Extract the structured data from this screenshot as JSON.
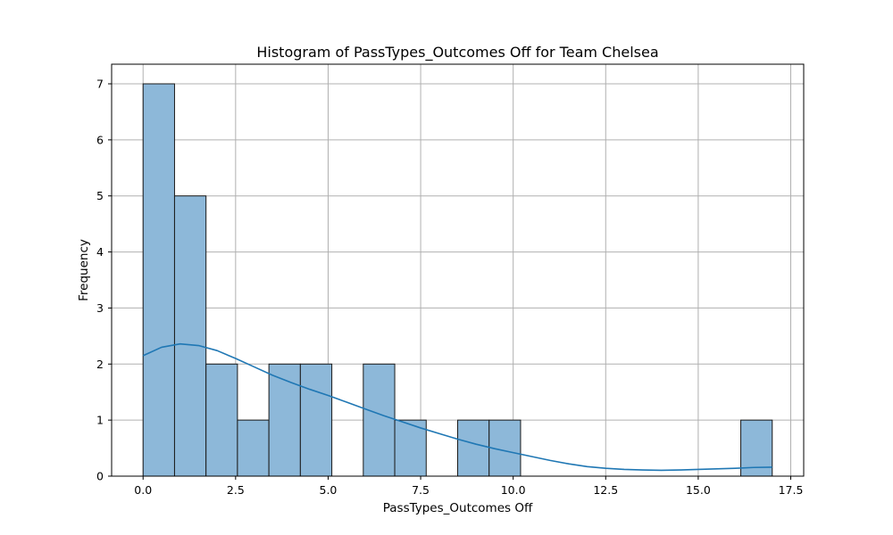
{
  "chart_data": {
    "type": "bar",
    "title": "Histogram of PassTypes_Outcomes Off for Team Chelsea",
    "xlabel": "PassTypes_Outcomes Off",
    "ylabel": "Frequency",
    "xlim": [
      -0.85,
      17.85
    ],
    "ylim": [
      0,
      7.35
    ],
    "x_ticks": [
      0.0,
      2.5,
      5.0,
      7.5,
      10.0,
      12.5,
      15.0,
      17.5
    ],
    "x_tick_labels": [
      "0.0",
      "2.5",
      "5.0",
      "7.5",
      "10.0",
      "12.5",
      "15.0",
      "17.5"
    ],
    "y_ticks": [
      0,
      1,
      2,
      3,
      4,
      5,
      6,
      7
    ],
    "y_tick_labels": [
      "0",
      "1",
      "2",
      "3",
      "4",
      "5",
      "6",
      "7"
    ],
    "grid": true,
    "bins": [
      {
        "start": 0.0,
        "end": 0.85,
        "count": 7
      },
      {
        "start": 0.85,
        "end": 1.7,
        "count": 5
      },
      {
        "start": 1.7,
        "end": 2.55,
        "count": 2
      },
      {
        "start": 2.55,
        "end": 3.4,
        "count": 1
      },
      {
        "start": 3.4,
        "end": 4.25,
        "count": 2
      },
      {
        "start": 4.25,
        "end": 5.1,
        "count": 2
      },
      {
        "start": 5.1,
        "end": 5.95,
        "count": 0
      },
      {
        "start": 5.95,
        "end": 6.8,
        "count": 2
      },
      {
        "start": 6.8,
        "end": 7.65,
        "count": 1
      },
      {
        "start": 7.65,
        "end": 8.5,
        "count": 0
      },
      {
        "start": 8.5,
        "end": 9.35,
        "count": 1
      },
      {
        "start": 9.35,
        "end": 10.2,
        "count": 1
      },
      {
        "start": 10.2,
        "end": 11.05,
        "count": 0
      },
      {
        "start": 11.05,
        "end": 11.9,
        "count": 0
      },
      {
        "start": 11.9,
        "end": 12.75,
        "count": 0
      },
      {
        "start": 12.75,
        "end": 13.6,
        "count": 0
      },
      {
        "start": 13.6,
        "end": 14.45,
        "count": 0
      },
      {
        "start": 14.45,
        "end": 15.3,
        "count": 0
      },
      {
        "start": 15.3,
        "end": 16.15,
        "count": 0
      },
      {
        "start": 16.15,
        "end": 17.0,
        "count": 1
      }
    ],
    "kde": {
      "x": [
        0.0,
        0.5,
        1.0,
        1.5,
        2.0,
        2.5,
        3.0,
        3.5,
        4.0,
        4.5,
        5.0,
        5.5,
        6.0,
        6.5,
        7.0,
        7.5,
        8.0,
        8.5,
        9.0,
        9.5,
        10.0,
        10.5,
        11.0,
        11.5,
        12.0,
        12.5,
        13.0,
        13.5,
        14.0,
        14.5,
        15.0,
        15.5,
        16.0,
        16.5,
        17.0
      ],
      "y": [
        2.15,
        2.3,
        2.36,
        2.33,
        2.24,
        2.1,
        1.95,
        1.8,
        1.67,
        1.55,
        1.44,
        1.32,
        1.2,
        1.08,
        0.97,
        0.86,
        0.76,
        0.66,
        0.57,
        0.49,
        0.42,
        0.35,
        0.28,
        0.22,
        0.17,
        0.14,
        0.12,
        0.11,
        0.105,
        0.11,
        0.12,
        0.13,
        0.14,
        0.155,
        0.16
      ]
    },
    "colors": {
      "bar_fill": "#8db8d9",
      "bar_edge": "#1a1a1a",
      "kde_line": "#1f77b4",
      "grid": "#b0b0b0",
      "axes": "#000000"
    }
  }
}
